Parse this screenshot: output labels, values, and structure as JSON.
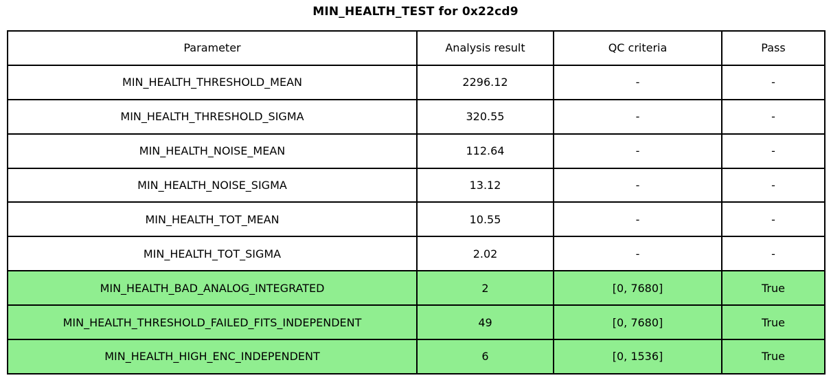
{
  "title": "MIN_HEALTH_TEST for 0x22cd9",
  "chart_data": {
    "type": "table",
    "title": "MIN_HEALTH_TEST for 0x22cd9",
    "columns": [
      "Parameter",
      "Analysis result",
      "QC criteria",
      "Pass"
    ],
    "rows": [
      [
        "MIN_HEALTH_THRESHOLD_MEAN",
        "2296.12",
        "-",
        "-"
      ],
      [
        "MIN_HEALTH_THRESHOLD_SIGMA",
        "320.55",
        "-",
        "-"
      ],
      [
        "MIN_HEALTH_NOISE_MEAN",
        "112.64",
        "-",
        "-"
      ],
      [
        "MIN_HEALTH_NOISE_SIGMA",
        "13.12",
        "-",
        "-"
      ],
      [
        "MIN_HEALTH_TOT_MEAN",
        "10.55",
        "-",
        "-"
      ],
      [
        "MIN_HEALTH_TOT_SIGMA",
        "2.02",
        "-",
        "-"
      ],
      [
        "MIN_HEALTH_BAD_ANALOG_INTEGRATED",
        "2",
        "[0, 7680]",
        "True"
      ],
      [
        "MIN_HEALTH_THRESHOLD_FAILED_FITS_INDEPENDENT",
        "49",
        "[0, 7680]",
        "True"
      ],
      [
        "MIN_HEALTH_HIGH_ENC_INDEPENDENT",
        "6",
        "[0, 1536]",
        "True"
      ]
    ],
    "highlighted_rows": [
      6,
      7,
      8
    ],
    "highlight_color": "#90EE90",
    "border_color": "#000000",
    "background_color": "#FFFFFF"
  }
}
